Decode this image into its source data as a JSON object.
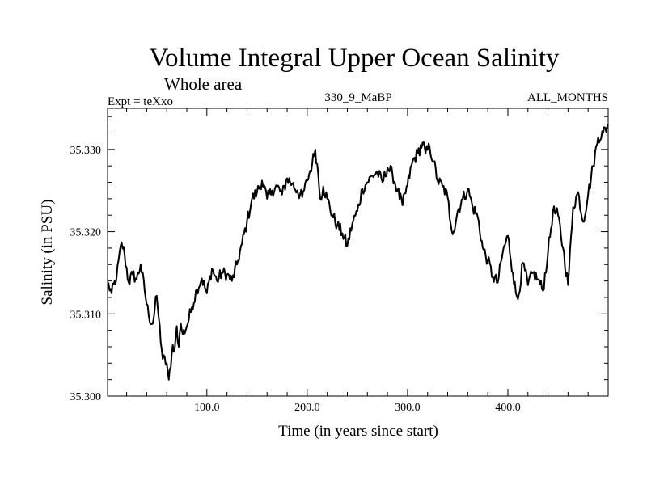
{
  "chart_data": {
    "type": "line",
    "title": "Volume Integral Upper Ocean Salinity",
    "subtitle": "Whole area",
    "left_label": "Expt = teXxo",
    "center_label": "330_9_MaBP",
    "right_label": "ALL_MONTHS",
    "xlabel": "Time (in years since start)",
    "ylabel": "Salinity (in PSU)",
    "xlim": [
      1,
      500
    ],
    "ylim": [
      35.3,
      35.335
    ],
    "x_ticks": [
      100,
      200,
      300,
      400
    ],
    "x_tick_labels": [
      "100.0",
      "200.0",
      "300.0",
      "400.0"
    ],
    "y_ticks": [
      35.3,
      35.31,
      35.32,
      35.33
    ],
    "y_tick_labels": [
      "35.300",
      "35.310",
      "35.320",
      "35.330"
    ],
    "grid": false,
    "series": [
      {
        "name": "salinity",
        "x": [
          1,
          5,
          10,
          15,
          18,
          22,
          26,
          30,
          34,
          38,
          42,
          46,
          50,
          52,
          56,
          60,
          62,
          64,
          66,
          68,
          70,
          72,
          74,
          76,
          80,
          85,
          90,
          95,
          100,
          105,
          110,
          115,
          120,
          125,
          130,
          135,
          140,
          145,
          150,
          155,
          160,
          165,
          170,
          175,
          180,
          185,
          190,
          195,
          200,
          205,
          208,
          210,
          213,
          216,
          220,
          225,
          230,
          235,
          240,
          245,
          250,
          255,
          260,
          265,
          270,
          275,
          280,
          285,
          290,
          295,
          300,
          305,
          310,
          315,
          318,
          322,
          326,
          330,
          335,
          340,
          343,
          346,
          350,
          355,
          360,
          365,
          370,
          375,
          380,
          385,
          390,
          395,
          400,
          405,
          408,
          410,
          415,
          420,
          425,
          430,
          435,
          440,
          445,
          450,
          455,
          460,
          465,
          470,
          475,
          480,
          485,
          490,
          495,
          500
        ],
        "values": [
          35.3138,
          35.3125,
          35.3145,
          35.3187,
          35.3172,
          35.3138,
          35.3148,
          35.3142,
          35.316,
          35.3128,
          35.3098,
          35.3088,
          35.3122,
          35.3095,
          35.3045,
          35.304,
          35.302,
          35.3035,
          35.3062,
          35.3058,
          35.3085,
          35.306,
          35.3088,
          35.3075,
          35.3085,
          35.3108,
          35.313,
          35.3143,
          35.3125,
          35.3155,
          35.314,
          35.315,
          35.3148,
          35.314,
          35.316,
          35.3185,
          35.3212,
          35.324,
          35.3248,
          35.3262,
          35.324,
          35.325,
          35.3255,
          35.3245,
          35.3265,
          35.3258,
          35.325,
          35.3242,
          35.3262,
          35.3283,
          35.33,
          35.3282,
          35.324,
          35.3255,
          35.324,
          35.322,
          35.3208,
          35.3198,
          35.3183,
          35.321,
          35.3225,
          35.3252,
          35.326,
          35.3268,
          35.3272,
          35.326,
          35.3278,
          35.327,
          35.325,
          35.3232,
          35.3257,
          35.3285,
          35.3295,
          35.3308,
          35.3295,
          35.3303,
          35.3285,
          35.3262,
          35.3255,
          35.3242,
          35.321,
          35.32,
          35.3225,
          35.324,
          35.3252,
          35.323,
          35.3218,
          35.318,
          35.3165,
          35.3145,
          35.3138,
          35.3175,
          35.3195,
          35.315,
          35.3125,
          35.3118,
          35.3162,
          35.3135,
          35.315,
          35.3142,
          35.3128,
          35.3175,
          35.3225,
          35.322,
          35.318,
          35.3135,
          35.323,
          35.3248,
          35.3212,
          35.3245,
          35.328,
          35.3315,
          35.332,
          35.333
        ]
      }
    ]
  }
}
